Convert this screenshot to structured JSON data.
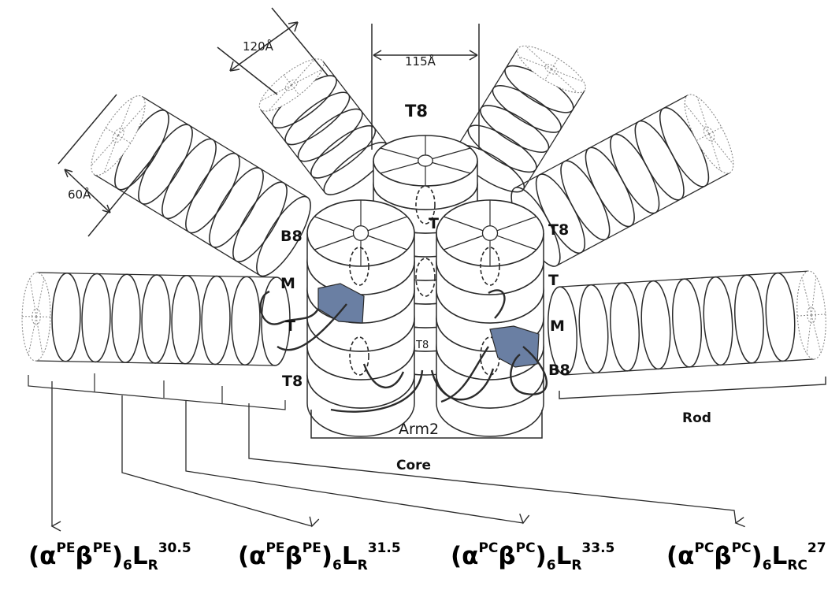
{
  "dimensions": {
    "width_120": "120Å",
    "width_115": "115Å",
    "width_60": "60Å"
  },
  "core_labels": {
    "top_disc": "T8",
    "left_b8": "B8",
    "left_m": "M",
    "left_t": "T",
    "left_t8": "T8",
    "center_t": "T",
    "center_t8": "T8",
    "right_t8": "T8",
    "right_t": "T",
    "right_m": "M",
    "right_b8": "B8"
  },
  "section_labels": {
    "arm": "Arm2",
    "core": "Core",
    "rod": "Rod"
  },
  "linkers": [
    {
      "main": "(α",
      "sup1": "PE",
      "mid": "β",
      "sup2": "PE",
      "close": ")",
      "sub1": "6",
      "L": "L",
      "sub2": "R",
      "sup3": "30.5"
    },
    {
      "main": "(α",
      "sup1": "PE",
      "mid": "β",
      "sup2": "PE",
      "close": ")",
      "sub1": "6",
      "L": "L",
      "sub2": "R",
      "sup3": "31.5"
    },
    {
      "main": "(α",
      "sup1": "PC",
      "mid": "β",
      "sup2": "PC",
      "close": ")",
      "sub1": "6",
      "L": "L",
      "sub2": "R",
      "sup3": "33.5"
    },
    {
      "main": "(α",
      "sup1": "PC",
      "mid": "β",
      "sup2": "PC",
      "close": ")",
      "sub1": "6",
      "L": "L",
      "sub2": "RC",
      "sup3": "27"
    }
  ],
  "colors": {
    "highlight": "#6a7fa3",
    "stroke": "#2b2b2b",
    "dotted": "#8a8a8a"
  }
}
